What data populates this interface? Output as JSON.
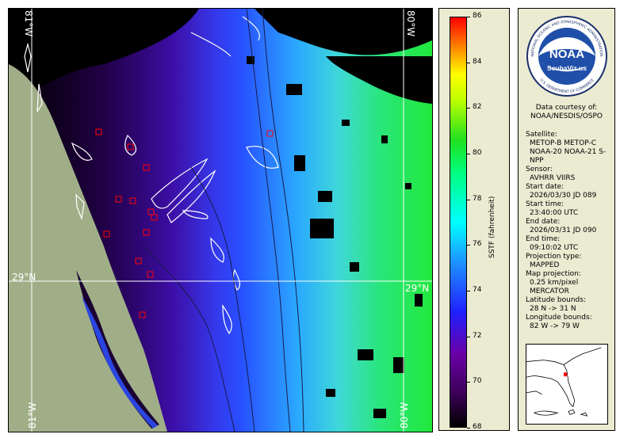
{
  "map": {
    "lat_lines": [
      "29°N",
      "29°N"
    ],
    "lon_top_left": "81°W",
    "lon_top_right": "80°W",
    "lon_bottom_left": "81°W",
    "lon_bottom_right": "80°W",
    "colors": {
      "land": "#a0ae88",
      "no_data": "#000000",
      "grid": "#ffffff",
      "station_marker": "#ff0000"
    }
  },
  "colorbar": {
    "ticks": [
      "86",
      "84",
      "82",
      "80",
      "78",
      "76",
      "74",
      "72",
      "70",
      "68"
    ],
    "unit": "SSTF (fahrenheit)",
    "range": [
      68,
      86
    ]
  },
  "info": {
    "logo_text": "NOAA",
    "logo_subtext": "ScubaViz.us",
    "logo_ring_top": "NATIONAL OCEANIC AND ATMOSPHERIC ADMINISTRATION",
    "logo_ring_bottom": "U.S. DEPARTMENT OF COMMERCE",
    "credit_line1": "Data courtesy of:",
    "credit_line2": "NOAA/NESDIS/OSPO",
    "satellite_label": "Satellite:",
    "satellite_value": "METOP-B METOP-C NOAA-20 NOAA-21 S-NPP",
    "sensor_label": "Sensor:",
    "sensor_value": "AVHRR VIIRS",
    "start_date_label": "Start date:",
    "start_date_value": "2026/03/30 JD 089",
    "start_time_label": "Start time:",
    "start_time_value": "23:40:00 UTC",
    "end_date_label": "End date:",
    "end_date_value": "2026/03/31 JD 090",
    "end_time_label": "End time:",
    "end_time_value": "09:10:02 UTC",
    "projection_label": "Projection type:",
    "projection_value": "MAPPED",
    "map_projection_label": "Map projection:",
    "map_projection_value1": "0.25 km/pixel",
    "map_projection_value2": "MERCATOR",
    "lat_bounds_label": "Latitude bounds:",
    "lat_bounds_value": "28 N -> 31 N",
    "lon_bounds_label": "Longitude bounds:",
    "lon_bounds_value": "82 W -> 79 W"
  }
}
